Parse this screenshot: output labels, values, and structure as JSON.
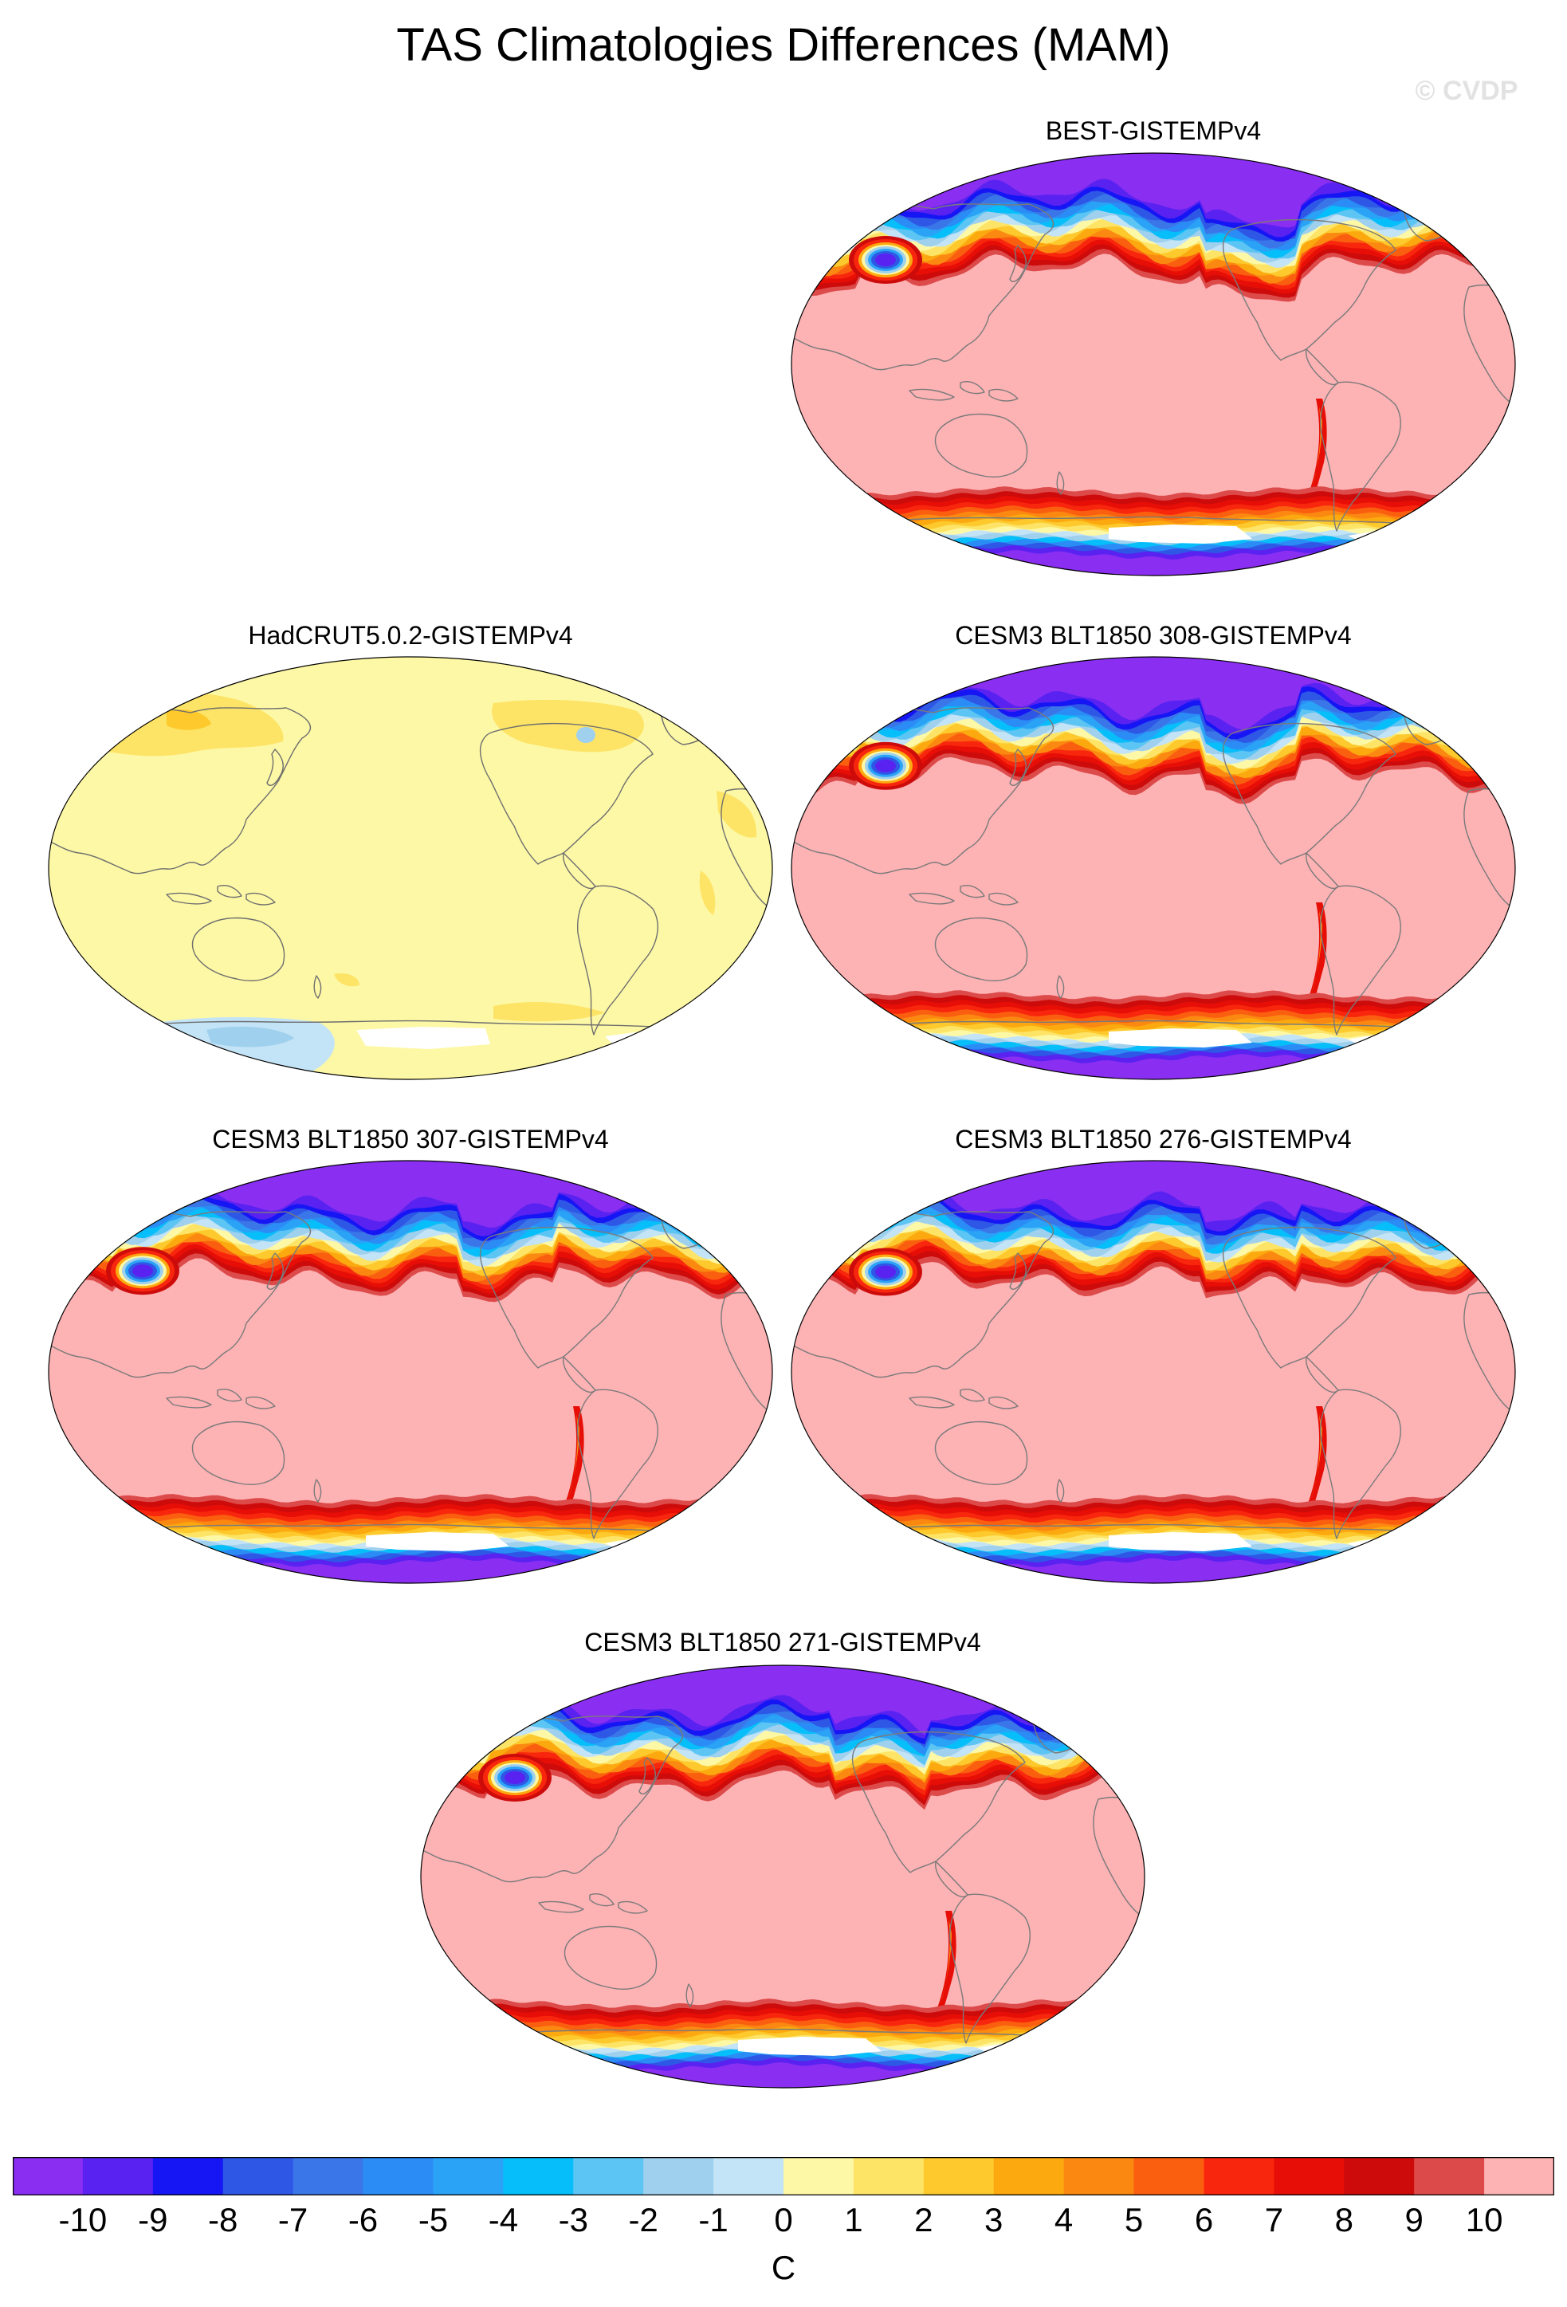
{
  "title": "TAS Climatologies Differences (MAM)",
  "watermark": "© CVDP",
  "panels": [
    {
      "label": "BEST-GISTEMPv4",
      "pattern": "model"
    },
    {
      "label": "HadCRUT5.0.2-GISTEMPv4",
      "pattern": "obs"
    },
    {
      "label": "CESM3 BLT1850 308-GISTEMPv4",
      "pattern": "model"
    },
    {
      "label": "CESM3 BLT1850 307-GISTEMPv4",
      "pattern": "model"
    },
    {
      "label": "CESM3 BLT1850 276-GISTEMPv4",
      "pattern": "model"
    },
    {
      "label": "CESM3 BLT1850 271-GISTEMPv4",
      "pattern": "model"
    }
  ],
  "colorbar": {
    "units": "C",
    "labels": [
      "-10",
      "-9",
      "-8",
      "-7",
      "-6",
      "-5",
      "-4",
      "-3",
      "-2",
      "-1",
      "0",
      "1",
      "2",
      "3",
      "4",
      "5",
      "6",
      "7",
      "8",
      "9",
      "10"
    ],
    "colors": [
      "#8a2ef2",
      "#5a22f0",
      "#1616f5",
      "#2e57e6",
      "#3a76e8",
      "#2b8cf5",
      "#2aa3f7",
      "#06bef9",
      "#5cc5f3",
      "#9fd0ee",
      "#c3e3f6",
      "#fdf8a6",
      "#fde466",
      "#fdc92c",
      "#fca90f",
      "#fb8811",
      "#fa5f0f",
      "#f8260d",
      "#e60e06",
      "#cd0b0b",
      "#dd4a4a",
      "#fdb2b4"
    ]
  }
}
